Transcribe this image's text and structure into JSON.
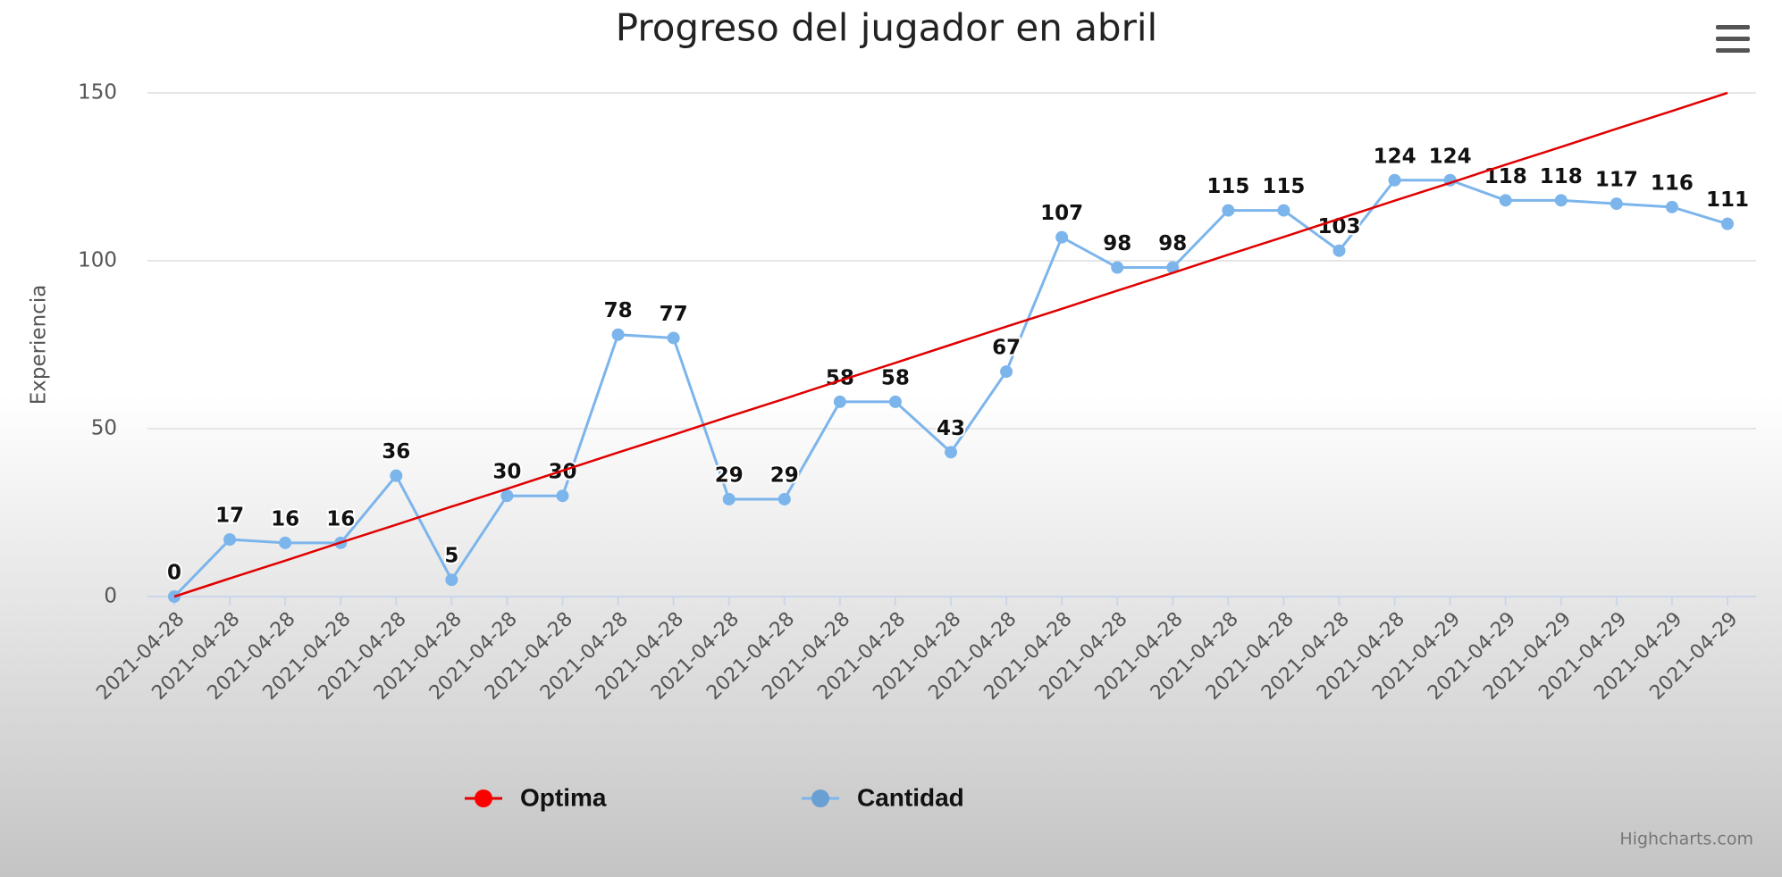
{
  "chart_data": {
    "type": "line",
    "title": "Progreso del jugador en abril",
    "y_label": "Experiencia",
    "credit": "Highcharts.com",
    "categories": [
      "2021-04-28",
      "2021-04-28",
      "2021-04-28",
      "2021-04-28",
      "2021-04-28",
      "2021-04-28",
      "2021-04-28",
      "2021-04-28",
      "2021-04-28",
      "2021-04-28",
      "2021-04-28",
      "2021-04-28",
      "2021-04-28",
      "2021-04-28",
      "2021-04-28",
      "2021-04-28",
      "2021-04-28",
      "2021-04-28",
      "2021-04-28",
      "2021-04-28",
      "2021-04-28",
      "2021-04-28",
      "2021-04-28",
      "2021-04-29",
      "2021-04-29",
      "2021-04-29",
      "2021-04-29",
      "2021-04-29",
      "2021-04-29"
    ],
    "series": [
      {
        "name": "Optima",
        "color": "#e00000",
        "markers": false,
        "data_labels": false,
        "values": [
          0,
          5.4,
          10.7,
          16.1,
          21.4,
          26.8,
          32.1,
          37.5,
          42.9,
          48.2,
          53.6,
          58.9,
          64.3,
          69.6,
          75,
          80.4,
          85.7,
          91.1,
          96.4,
          101.8,
          107.1,
          112.5,
          117.9,
          123.2,
          128.6,
          133.9,
          139.3,
          144.6,
          150
        ]
      },
      {
        "name": "Cantidad",
        "color": "#7cb5ec",
        "markers": true,
        "data_labels": true,
        "values": [
          0,
          17,
          16,
          16,
          36,
          5,
          30,
          30,
          78,
          77,
          29,
          29,
          58,
          58,
          43,
          67,
          107,
          98,
          98,
          115,
          115,
          103,
          124,
          124,
          118,
          118,
          117,
          116,
          111
        ]
      }
    ],
    "ylim": [
      0,
      150
    ],
    "yticks": [
      0,
      50,
      100,
      150
    ],
    "grid": true
  }
}
